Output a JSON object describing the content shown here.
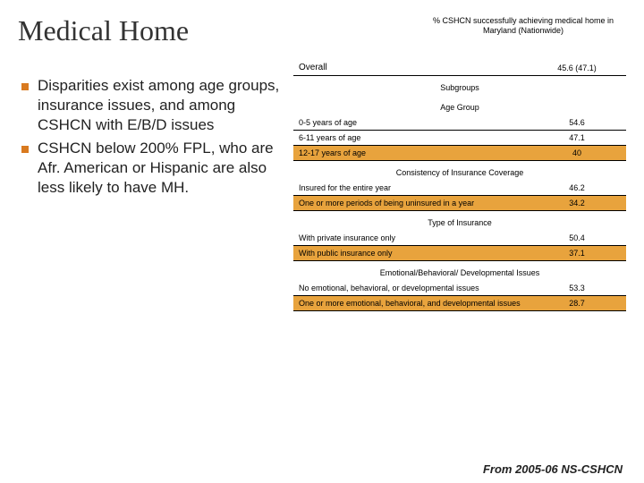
{
  "title": "Medical Home",
  "column_header": "% CSHCN successfully achieving medical home in Maryland (Nationwide)",
  "overall": {
    "label": "Overall",
    "value": "45.6 (47.1)"
  },
  "subgroups_label": "Subgroups",
  "bullets": [
    "Disparities exist among age groups, insurance issues, and among CSHCN with E/B/D issues",
    "CSHCN below 200% FPL, who are Afr. American or Hispanic are also less likely to have MH."
  ],
  "sections": [
    {
      "header": "Age Group",
      "rows": [
        {
          "label": "0-5 years of age",
          "value": "54.6",
          "hl": false
        },
        {
          "label": "6-11 years of age",
          "value": "47.1",
          "hl": false
        },
        {
          "label": "12-17 years of age",
          "value": "40",
          "hl": true
        }
      ]
    },
    {
      "header": "Consistency of Insurance Coverage",
      "rows": [
        {
          "label": "Insured for the entire year",
          "value": "46.2",
          "hl": false
        },
        {
          "label": "One or more periods of being uninsured in a year",
          "value": "34.2",
          "hl": true
        }
      ]
    },
    {
      "header": "Type of Insurance",
      "rows": [
        {
          "label": "With private insurance only",
          "value": "50.4",
          "hl": false
        },
        {
          "label": "With public insurance only",
          "value": "37.1",
          "hl": true
        }
      ]
    },
    {
      "header": "Emotional/Behavioral/ Developmental Issues",
      "rows": [
        {
          "label": "No emotional, behavioral, or developmental issues",
          "value": "53.3",
          "hl": false
        },
        {
          "label": "One or more emotional, behavioral, and developmental issues",
          "value": "28.7",
          "hl": true
        }
      ]
    }
  ],
  "source": "From 2005-06 NS-CSHCN",
  "colors": {
    "highlight": "#e8a33d",
    "bullet": "#d97a1f"
  }
}
